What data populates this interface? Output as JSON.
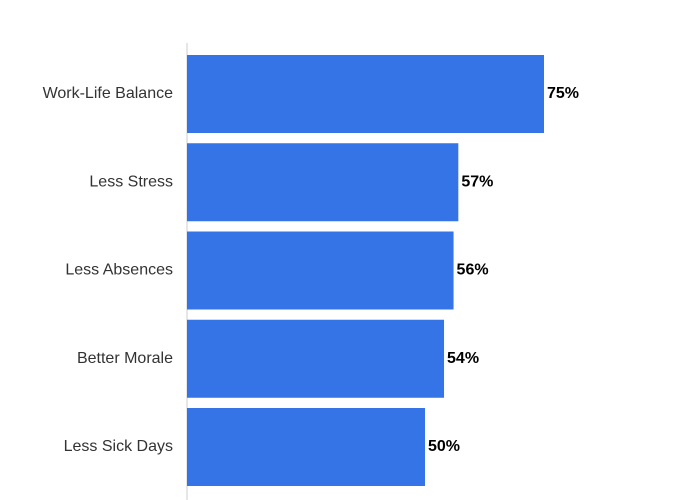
{
  "chart_data": {
    "type": "bar",
    "orientation": "horizontal",
    "categories": [
      "Work-Life Balance",
      "Less Stress",
      "Less Absences",
      "Better Morale",
      "Less Sick Days"
    ],
    "values": [
      75,
      57,
      56,
      54,
      50
    ],
    "value_labels": [
      "75%",
      "57%",
      "56%",
      "54%",
      "50%"
    ],
    "xlim": [
      0,
      100
    ],
    "grid": false,
    "legend": "none",
    "title": "",
    "xlabel": "",
    "ylabel": ""
  },
  "colors": {
    "bar": "#3474e6",
    "axis": "#cccccc",
    "category_text": "#333333",
    "value_text": "#000000"
  }
}
